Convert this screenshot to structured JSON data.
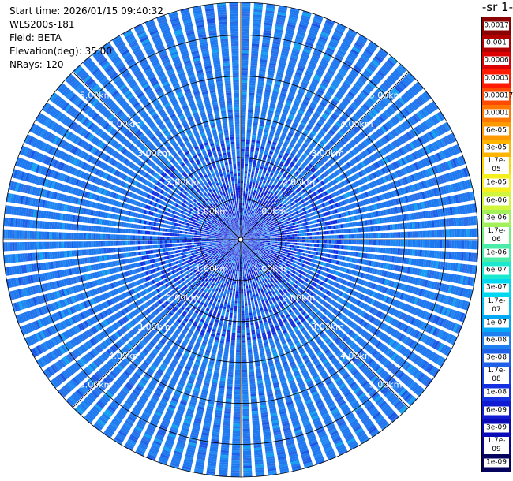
{
  "header": {
    "start_time": "Start time: 2026/01/15 09:40:32",
    "instrument": "WLS200s-181",
    "field": "Field: BETA",
    "elevation": "Elevation(deg): 35.00",
    "nrays": "NRays: 120"
  },
  "colorbar": {
    "title": "-1 sr-",
    "labels": [
      "0.0017",
      "0.001",
      "0.0006",
      "0.0003",
      "0.00017",
      "0.0001",
      "6e-05",
      "3e-05",
      "1.7e-05",
      "1e-05",
      "6e-06",
      "3e-06",
      "1.7e-06",
      "1e-06",
      "6e-07",
      "3e-07",
      "1.7e-07",
      "1e-07",
      "6e-08",
      "3e-08",
      "1.7e-08",
      "1e-08",
      "6e-09",
      "3e-09",
      "1.7e-09",
      "1e-09"
    ],
    "colors": [
      "#8b0000",
      "#b00000",
      "#dd0000",
      "#ff1a00",
      "#ff4a00",
      "#ff7700",
      "#ff9900",
      "#ffb400",
      "#ffd700",
      "#f5ef20",
      "#d0f53c",
      "#a2f05a",
      "#73ef7d",
      "#4aeca7",
      "#1be9cf",
      "#00d7f0",
      "#00c0f5",
      "#00a8f5",
      "#1f7ff0",
      "#1f60e8",
      "#1a45e6",
      "#1530e0",
      "#0f1ad2",
      "#0a0ab8",
      "#08058f",
      "#05035e"
    ]
  },
  "chart_data": {
    "type": "heatmap",
    "projection": "polar-ppi",
    "nrays": 120,
    "range_rings_km": [
      1,
      2,
      3,
      4,
      5
    ],
    "ring_labels": [
      "1.00km",
      "2.00km",
      "3.00km",
      "4.00km",
      "5.00km"
    ],
    "dominant_value": "3e-08",
    "value_range": [
      "1e-09",
      "0.0017"
    ],
    "grid": true
  }
}
